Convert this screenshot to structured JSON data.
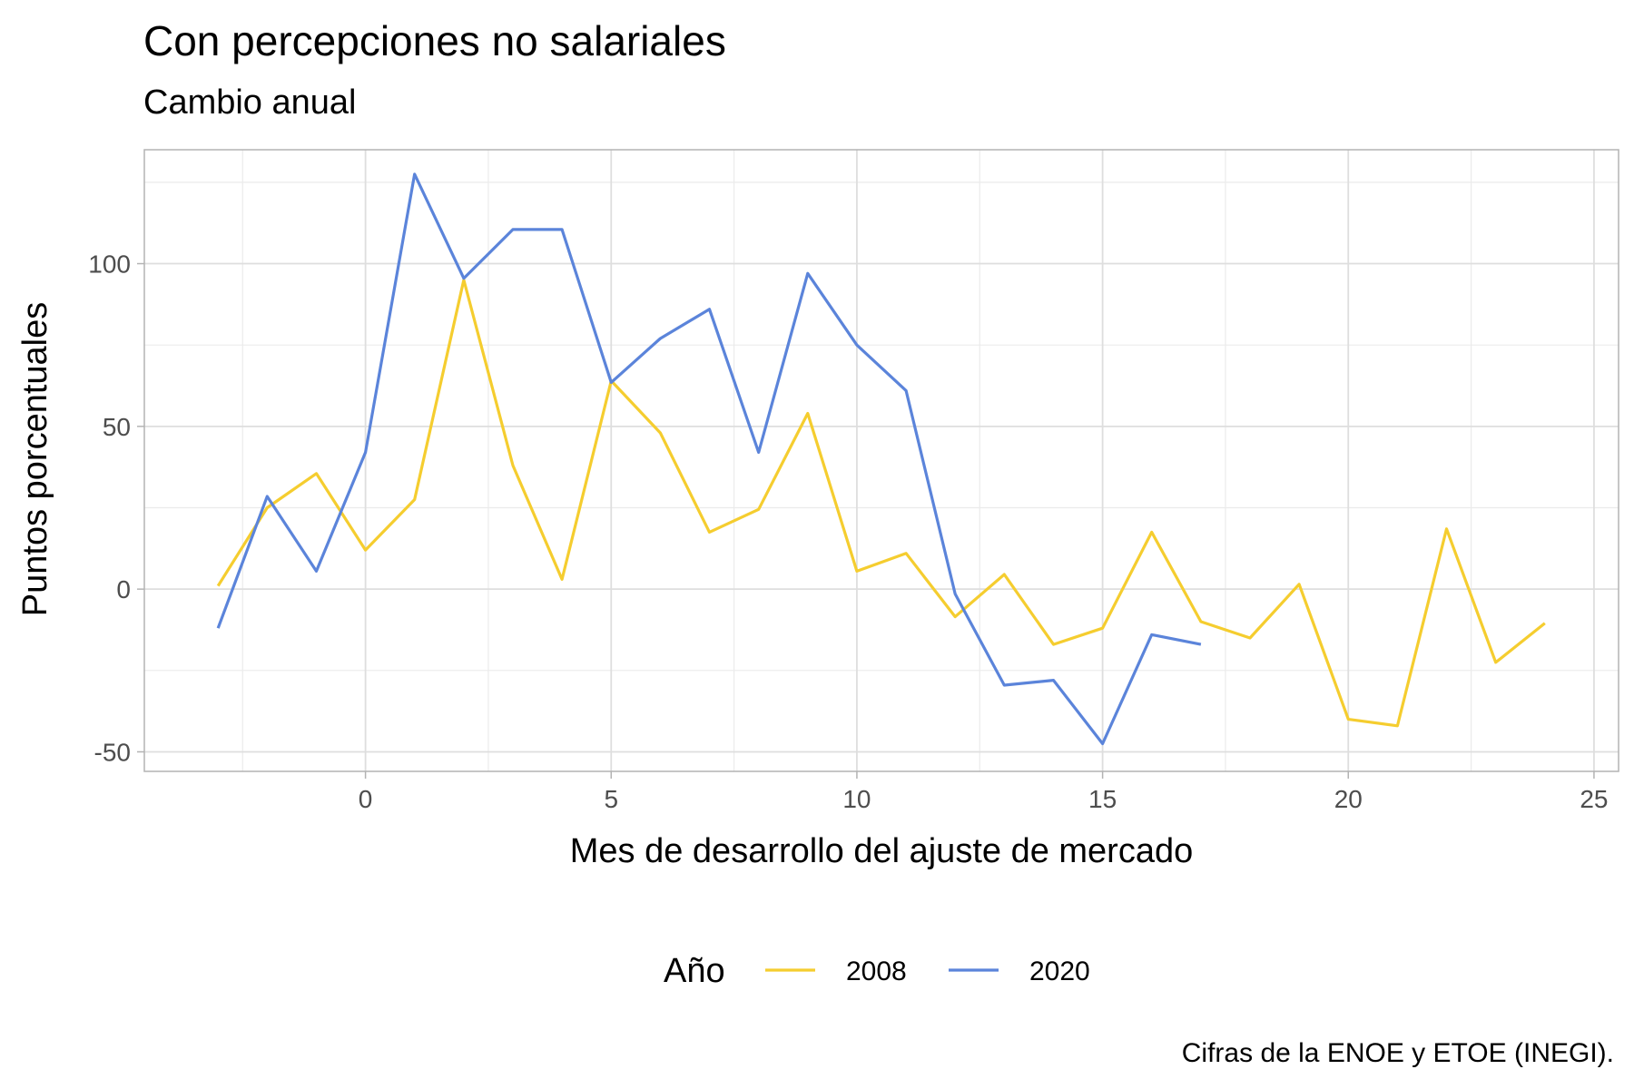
{
  "chart_data": {
    "type": "line",
    "title": "Con percepciones no salariales",
    "subtitle": "Cambio anual",
    "xlabel": "Mes de desarrollo del ajuste de mercado",
    "ylabel": "Puntos porcentuales",
    "caption": "Cifras de la ENOE y ETOE (INEGI).",
    "legend_title": "Año",
    "legend_position": "bottom",
    "grid": true,
    "xlim": [
      -4.5,
      25.5
    ],
    "ylim": [
      -56,
      135
    ],
    "x_ticks": [
      0,
      5,
      10,
      15,
      20,
      25
    ],
    "y_ticks": [
      -50,
      0,
      50,
      100
    ],
    "x_tick_labels": [
      "0",
      "5",
      "10",
      "15",
      "20",
      "25"
    ],
    "y_tick_labels": [
      "-50",
      "0",
      "50",
      "100"
    ],
    "series": [
      {
        "name": "2008",
        "color": "#F5CD2F",
        "x": [
          -3,
          -2,
          -1,
          0,
          1,
          2,
          3,
          4,
          5,
          6,
          7,
          8,
          9,
          10,
          11,
          12,
          13,
          14,
          15,
          16,
          17,
          18,
          19,
          20,
          21,
          22,
          23,
          24
        ],
        "y": [
          1,
          25,
          35.5,
          12,
          27.5,
          95,
          38,
          3,
          64,
          48,
          17.5,
          24.5,
          54,
          5.5,
          11,
          -8.5,
          4.5,
          -17,
          -12,
          17.5,
          -10,
          -15,
          1.5,
          -40,
          -42,
          18.5,
          -22.5,
          -10.5
        ]
      },
      {
        "name": "2020",
        "color": "#5B84DA",
        "x": [
          -3,
          -2,
          -1,
          0,
          1,
          2,
          3,
          4,
          5,
          6,
          7,
          8,
          9,
          10,
          11,
          12,
          13,
          14,
          15,
          16,
          17
        ],
        "y": [
          -12,
          28.5,
          5.5,
          42,
          127.5,
          95.5,
          110.5,
          110.5,
          63.5,
          77,
          86,
          42,
          97,
          75,
          61,
          -1.5,
          -29.5,
          -28,
          -47.5,
          -14,
          -17
        ]
      }
    ]
  }
}
